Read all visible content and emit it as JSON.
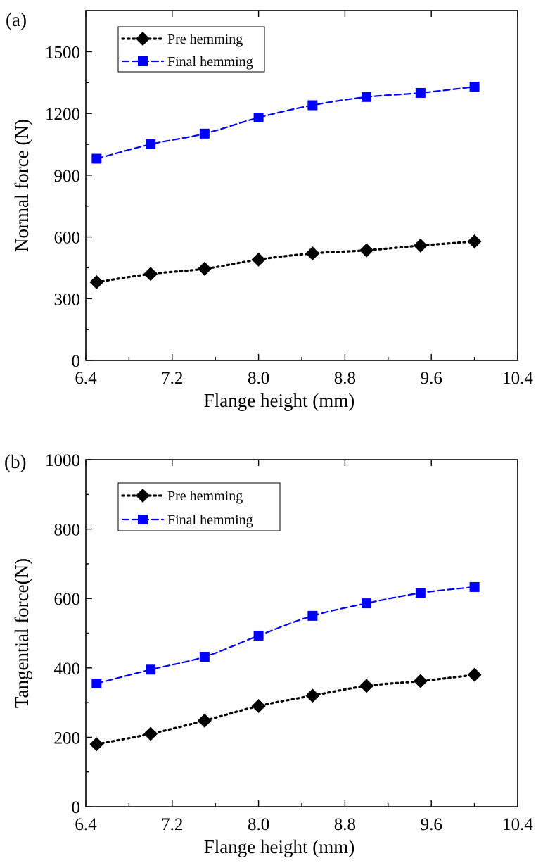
{
  "colors": {
    "pre": "#000000",
    "final": "#0000ff"
  },
  "chart_data": [
    {
      "type": "line",
      "panel_label": "(a)",
      "xlabel": "Flange height (mm)",
      "ylabel": "Normal force (N)",
      "xlim": [
        6.4,
        10.4
      ],
      "ylim": [
        0,
        1700
      ],
      "xticks": [
        6.4,
        7.2,
        8.0,
        8.8,
        9.6,
        10.4
      ],
      "xtick_labels": [
        "6.4",
        "7.2",
        "8.0",
        "8.8",
        "9.6",
        "10.4"
      ],
      "yticks": [
        0,
        300,
        600,
        900,
        1200,
        1500
      ],
      "ytick_labels": [
        "0",
        "300",
        "600",
        "900",
        "1200",
        "1500"
      ],
      "legend_position": "top-left",
      "x": [
        6.5,
        7.0,
        7.5,
        8.0,
        8.5,
        9.0,
        9.5,
        10.0
      ],
      "series": [
        {
          "name": "Pre hemming",
          "marker": "diamond",
          "linestyle": "dotted",
          "values": [
            380,
            420,
            445,
            490,
            520,
            535,
            558,
            578
          ]
        },
        {
          "name": "Final hemming",
          "marker": "square",
          "linestyle": "dashed",
          "values": [
            980,
            1050,
            1102,
            1180,
            1240,
            1280,
            1300,
            1330
          ]
        }
      ]
    },
    {
      "type": "line",
      "panel_label": "(b)",
      "xlabel": "Flange height (mm)",
      "ylabel": "Tangential force(N)",
      "xlim": [
        6.4,
        10.4
      ],
      "ylim": [
        0,
        1000
      ],
      "xticks": [
        6.4,
        7.2,
        8.0,
        8.8,
        9.6,
        10.4
      ],
      "xtick_labels": [
        "6.4",
        "7.2",
        "8.0",
        "8.8",
        "9.6",
        "10.4"
      ],
      "yticks": [
        0,
        200,
        400,
        600,
        800,
        1000
      ],
      "ytick_labels": [
        "0",
        "200",
        "400",
        "600",
        "800",
        "1000"
      ],
      "legend_position": "top-left",
      "x": [
        6.5,
        7.0,
        7.5,
        8.0,
        8.5,
        9.0,
        9.5,
        10.0
      ],
      "series": [
        {
          "name": "Pre hemming",
          "marker": "diamond",
          "linestyle": "dotted",
          "values": [
            180,
            210,
            248,
            290,
            320,
            348,
            362,
            380
          ]
        },
        {
          "name": "Final hemming",
          "marker": "square",
          "linestyle": "dashed",
          "values": [
            355,
            395,
            432,
            493,
            550,
            586,
            616,
            633
          ]
        }
      ]
    }
  ]
}
